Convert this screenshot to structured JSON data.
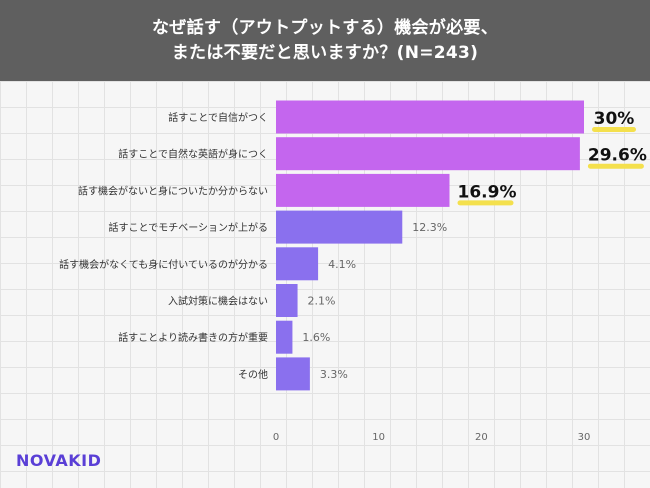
{
  "header": {
    "title_line1": "なぜ話す（アウトプットする）機会が必要、",
    "title_line2": "または不要だと思いますか？(N=243)"
  },
  "logo": {
    "text": "NOVAKID"
  },
  "colors": {
    "bar_primary": "#c466ee",
    "bar_secondary": "#8a70ee",
    "highlight": "#f4e04d",
    "tick_text": "#666666",
    "label_text": "#333333"
  },
  "chart_data": {
    "type": "bar",
    "orientation": "horizontal",
    "categories": [
      "話すことで自信がつく",
      "話すことで自然な英語が身につく",
      "話す機会がないと身についたか分からない",
      "話すことでモチベーションが上がる",
      "話す機会がなくても身に付いているのが分かる",
      "入試対策に機会はない",
      "話すことより読み書きの方が重要",
      "その他"
    ],
    "values": [
      30,
      29.6,
      16.9,
      12.3,
      4.1,
      2.1,
      1.6,
      3.3
    ],
    "value_labels": [
      "30%",
      "29.6%",
      "16.9%",
      "12.3%",
      "4.1%",
      "2.1%",
      "1.6%",
      "3.3%"
    ],
    "highlighted_top": 3,
    "xlim": [
      0,
      30
    ],
    "xticks": [
      0,
      10,
      20,
      30
    ],
    "grid": true
  }
}
